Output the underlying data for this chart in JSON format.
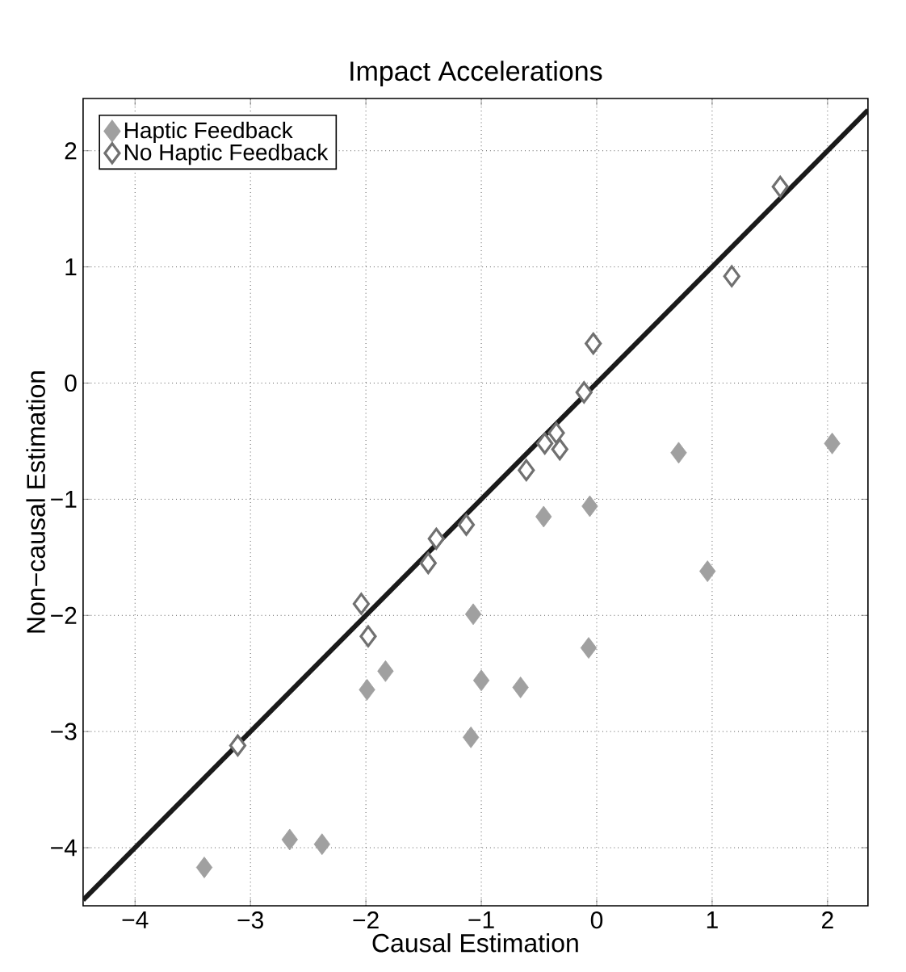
{
  "chart_data": {
    "type": "scatter",
    "title": "Impact Accelerations",
    "xlabel": "Causal Estimation",
    "ylabel": "Non−causal Estimation",
    "xlim": [
      -4.45,
      2.35
    ],
    "ylim": [
      -4.5,
      2.45
    ],
    "xticks": [
      {
        "value": -4,
        "label": "−4"
      },
      {
        "value": -3,
        "label": "−3"
      },
      {
        "value": -2,
        "label": "−2"
      },
      {
        "value": -1,
        "label": "−1"
      },
      0,
      1,
      2
    ],
    "yticks": [
      {
        "value": -4,
        "label": "−4"
      },
      {
        "value": -3,
        "label": "−3"
      },
      {
        "value": -2,
        "label": "−2"
      },
      {
        "value": -1,
        "label": "−1"
      },
      0,
      1,
      2
    ],
    "grid": true,
    "legend": "top left",
    "marker": "diamond",
    "series": [
      {
        "name": "Haptic Feedback",
        "color": "#a0a0a0",
        "x": [
          -3.4,
          -2.66,
          -2.38,
          -1.99,
          -1.83,
          -1.07,
          -1.0,
          -1.09,
          -0.66,
          -0.46,
          -0.06,
          -0.07,
          0.71,
          0.96,
          2.04
        ],
        "values": [
          -4.17,
          -3.93,
          -3.97,
          -2.64,
          -2.48,
          -1.99,
          -2.56,
          -3.05,
          -2.62,
          -1.15,
          -1.06,
          -2.28,
          -0.6,
          -1.62,
          -0.52
        ]
      },
      {
        "name": "No Haptic Feedback",
        "color": "#707070",
        "x": [
          -3.11,
          -2.04,
          -1.98,
          -1.46,
          -1.39,
          -1.13,
          -0.61,
          -0.45,
          -0.35,
          -0.32,
          -0.11,
          -0.03,
          1.17,
          1.59
        ],
        "values": [
          -3.12,
          -1.9,
          -2.18,
          -1.55,
          -1.34,
          -1.22,
          -0.75,
          -0.52,
          -0.43,
          -0.57,
          -0.08,
          0.34,
          0.92,
          1.69
        ]
      },
      {
        "type": "line",
        "color": "#1a1a1a",
        "x": [
          -4.45,
          2.35
        ],
        "values": [
          -4.45,
          2.35
        ],
        "marker": "none"
      }
    ]
  }
}
